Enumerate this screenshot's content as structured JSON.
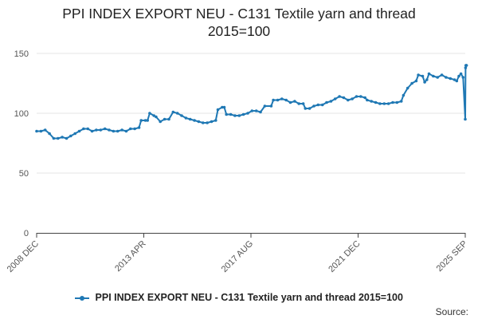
{
  "chart_data": {
    "type": "line",
    "title_lines": [
      "PPI INDEX EXPORT NEU - C131 Textile yarn and thread",
      "2015=100"
    ],
    "xlabel": "",
    "ylabel": "",
    "x_tick_labels": [
      "2008 DEC",
      "2013 APR",
      "2017 AUG",
      "2021 DEC",
      "2025 SEP"
    ],
    "x_range": [
      "2008-12",
      "2025-09"
    ],
    "ylim": [
      0,
      150
    ],
    "y_ticks": [
      0,
      50,
      100,
      150
    ],
    "grid": "horizontal",
    "legend_position": "bottom",
    "color": "#1f78b4",
    "series": [
      {
        "name": "PPI INDEX EXPORT NEU - C131 Textile yarn and thread 2015=100",
        "points": [
          [
            "2008-12",
            85
          ],
          [
            "2009-02",
            85
          ],
          [
            "2009-04",
            86
          ],
          [
            "2009-06",
            83
          ],
          [
            "2009-08",
            79
          ],
          [
            "2009-10",
            79
          ],
          [
            "2009-12",
            80
          ],
          [
            "2010-02",
            79
          ],
          [
            "2010-04",
            81
          ],
          [
            "2010-06",
            83
          ],
          [
            "2010-08",
            85
          ],
          [
            "2010-10",
            87
          ],
          [
            "2010-12",
            87
          ],
          [
            "2011-02",
            85
          ],
          [
            "2011-04",
            86
          ],
          [
            "2011-06",
            86
          ],
          [
            "2011-08",
            87
          ],
          [
            "2011-10",
            86
          ],
          [
            "2011-12",
            85
          ],
          [
            "2012-02",
            85
          ],
          [
            "2012-04",
            86
          ],
          [
            "2012-06",
            85
          ],
          [
            "2012-08",
            87
          ],
          [
            "2012-10",
            87
          ],
          [
            "2012-12",
            88
          ],
          [
            "2013-01",
            94
          ],
          [
            "2013-03",
            94
          ],
          [
            "2013-04",
            94
          ],
          [
            "2013-05",
            100
          ],
          [
            "2013-07",
            98
          ],
          [
            "2013-08",
            97
          ],
          [
            "2013-10",
            93
          ],
          [
            "2013-12",
            95
          ],
          [
            "2014-02",
            95
          ],
          [
            "2014-04",
            101
          ],
          [
            "2014-06",
            100
          ],
          [
            "2014-08",
            98
          ],
          [
            "2014-10",
            96
          ],
          [
            "2014-12",
            95
          ],
          [
            "2015-02",
            94
          ],
          [
            "2015-04",
            93
          ],
          [
            "2015-06",
            92
          ],
          [
            "2015-08",
            92
          ],
          [
            "2015-10",
            93
          ],
          [
            "2015-12",
            94
          ],
          [
            "2016-01",
            103
          ],
          [
            "2016-03",
            105
          ],
          [
            "2016-04",
            105
          ],
          [
            "2016-05",
            99
          ],
          [
            "2016-07",
            99
          ],
          [
            "2016-09",
            98
          ],
          [
            "2016-11",
            98
          ],
          [
            "2017-01",
            99
          ],
          [
            "2017-03",
            100
          ],
          [
            "2017-05",
            102
          ],
          [
            "2017-07",
            102
          ],
          [
            "2017-09",
            101
          ],
          [
            "2017-11",
            106
          ],
          [
            "2018-02",
            106
          ],
          [
            "2018-03",
            111
          ],
          [
            "2018-05",
            111
          ],
          [
            "2018-07",
            112
          ],
          [
            "2018-09",
            111
          ],
          [
            "2018-11",
            109
          ],
          [
            "2019-01",
            110
          ],
          [
            "2019-03",
            108
          ],
          [
            "2019-05",
            108
          ],
          [
            "2019-06",
            104
          ],
          [
            "2019-08",
            104
          ],
          [
            "2019-10",
            106
          ],
          [
            "2019-12",
            107
          ],
          [
            "2020-02",
            107
          ],
          [
            "2020-04",
            109
          ],
          [
            "2020-06",
            110
          ],
          [
            "2020-08",
            112
          ],
          [
            "2020-10",
            114
          ],
          [
            "2020-12",
            113
          ],
          [
            "2021-02",
            111
          ],
          [
            "2021-04",
            112
          ],
          [
            "2021-06",
            114
          ],
          [
            "2021-08",
            114
          ],
          [
            "2021-10",
            113
          ],
          [
            "2021-11",
            111
          ],
          [
            "2022-01",
            110
          ],
          [
            "2022-03",
            109
          ],
          [
            "2022-05",
            108
          ],
          [
            "2022-07",
            108
          ],
          [
            "2022-09",
            108
          ],
          [
            "2022-11",
            109
          ],
          [
            "2023-01",
            109
          ],
          [
            "2023-03",
            110
          ],
          [
            "2023-04",
            115
          ],
          [
            "2023-06",
            121
          ],
          [
            "2023-08",
            125
          ],
          [
            "2023-10",
            127
          ],
          [
            "2023-11",
            132
          ],
          [
            "2024-01",
            131
          ],
          [
            "2024-02",
            126
          ],
          [
            "2024-03",
            128
          ],
          [
            "2024-04",
            133
          ],
          [
            "2024-06",
            131
          ],
          [
            "2024-08",
            130
          ],
          [
            "2024-10",
            132
          ],
          [
            "2024-12",
            130
          ],
          [
            "2025-02",
            129
          ],
          [
            "2025-04",
            128
          ],
          [
            "2025-05",
            127
          ],
          [
            "2025-06",
            131
          ],
          [
            "2025-07",
            133
          ],
          [
            "2025-08",
            130
          ],
          [
            "2025-09",
            95
          ],
          [
            "2025-09",
            138
          ],
          [
            "2025-09",
            140
          ],
          [
            "2025-09",
            140
          ],
          [
            "2025-09",
            140
          ]
        ]
      }
    ]
  },
  "source_label": "Source:"
}
